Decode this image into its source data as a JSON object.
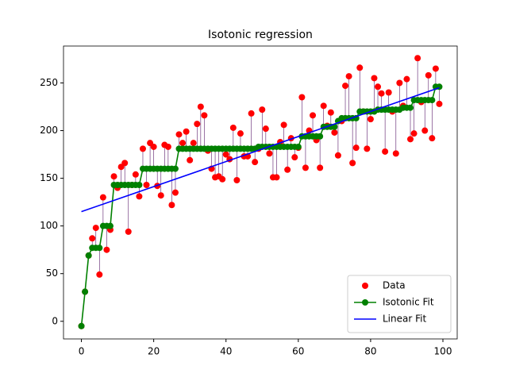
{
  "chart_data": {
    "type": "scatter-line",
    "title": "Isotonic regression",
    "x": [
      0,
      1,
      2,
      3,
      4,
      5,
      6,
      7,
      8,
      9,
      10,
      11,
      12,
      13,
      14,
      15,
      16,
      17,
      18,
      19,
      20,
      21,
      22,
      23,
      24,
      25,
      26,
      27,
      28,
      29,
      30,
      31,
      32,
      33,
      34,
      35,
      36,
      37,
      38,
      39,
      40,
      41,
      42,
      43,
      44,
      45,
      46,
      47,
      48,
      49,
      50,
      51,
      52,
      53,
      54,
      55,
      56,
      57,
      58,
      59,
      60,
      61,
      62,
      63,
      64,
      65,
      66,
      67,
      68,
      69,
      70,
      71,
      72,
      73,
      74,
      75,
      76,
      77,
      78,
      79,
      80,
      81,
      82,
      83,
      84,
      85,
      86,
      87,
      88,
      89,
      90,
      91,
      92,
      93,
      94,
      95,
      96,
      97,
      98,
      99
    ],
    "series": [
      {
        "name": "Data",
        "color": "#ff0000",
        "style": "points",
        "values": [
          -5,
          31,
          69,
          87,
          98,
          49,
          130,
          75,
          96,
          152,
          140,
          162,
          166,
          94,
          143,
          154,
          131,
          181,
          143,
          187,
          183,
          142,
          132,
          185,
          183,
          122,
          135,
          196,
          187,
          199,
          169,
          187,
          207,
          225,
          216,
          179,
          160,
          151,
          152,
          149,
          175,
          170,
          203,
          148,
          197,
          173,
          173,
          218,
          167,
          181,
          222,
          202,
          176,
          151,
          151,
          188,
          206,
          159,
          192,
          172,
          182,
          235,
          161,
          200,
          216,
          190,
          161,
          226,
          205,
          219,
          198,
          174,
          210,
          247,
          257,
          166,
          182,
          266,
          220,
          181,
          212,
          255,
          246,
          239,
          178,
          240,
          220,
          176,
          250,
          226,
          254,
          191,
          197,
          276,
          230,
          200,
          258,
          192,
          265,
          228
        ]
      },
      {
        "name": "Isotonic Fit",
        "color": "#008000",
        "style": "line-points",
        "values": [
          -5,
          31,
          69,
          77,
          77,
          77,
          100,
          100,
          100,
          143,
          143,
          143,
          143,
          143,
          143,
          143,
          143,
          160,
          160,
          160,
          160,
          160,
          160,
          160,
          160,
          160,
          160,
          181,
          181,
          181,
          181,
          181,
          181,
          181,
          181,
          181,
          181,
          181,
          181,
          181,
          181,
          181,
          181,
          181,
          181,
          181,
          181,
          181,
          181,
          183,
          183,
          183,
          183,
          183,
          183,
          183,
          183,
          183,
          183,
          183,
          183,
          194,
          194,
          194,
          194,
          194,
          194,
          204,
          204,
          204,
          204,
          210,
          213,
          213,
          213,
          213,
          213,
          220,
          220,
          220,
          220,
          220,
          222,
          222,
          222,
          222,
          222,
          222,
          222,
          224,
          224,
          224,
          232,
          232,
          232,
          232,
          232,
          232,
          246,
          246
        ]
      },
      {
        "name": "Linear Fit",
        "color": "#0000ff",
        "style": "line",
        "x": [
          0,
          99
        ],
        "values": [
          115,
          245
        ]
      }
    ],
    "xlim": [
      -4.95,
      103.95
    ],
    "ylim": [
      -18.5,
      288.7
    ],
    "xticks": [
      0,
      20,
      40,
      60,
      80,
      100
    ],
    "yticks": [
      0,
      50,
      100,
      150,
      200,
      250
    ],
    "legend": "lower right"
  }
}
